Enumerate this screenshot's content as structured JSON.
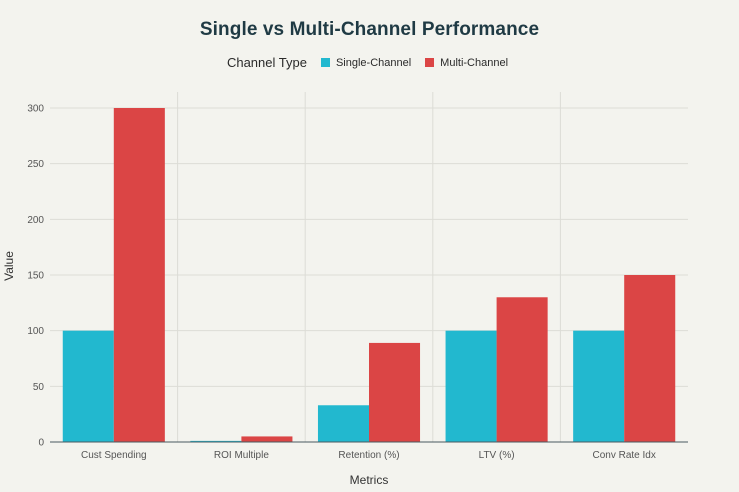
{
  "chart_data": {
    "type": "bar",
    "title": "Single vs Multi-Channel Performance",
    "xlabel": "Metrics",
    "ylabel": "Value",
    "categories": [
      "Cust Spending",
      "ROI Multiple",
      "Retention (%)",
      "LTV (%)",
      "Conv Rate Idx"
    ],
    "series": [
      {
        "name": "Single-Channel",
        "color": "#22b8cf",
        "values": [
          100,
          1,
          33,
          100,
          100
        ]
      },
      {
        "name": "Multi-Channel",
        "color": "#db4545",
        "values": [
          300,
          5,
          89,
          130,
          150
        ]
      }
    ],
    "ylim": [
      0,
      300
    ],
    "yticks": [
      0,
      50,
      100,
      150,
      200,
      250,
      300
    ],
    "grid": true,
    "legend_title": "Channel Type",
    "legend_position": "top"
  }
}
